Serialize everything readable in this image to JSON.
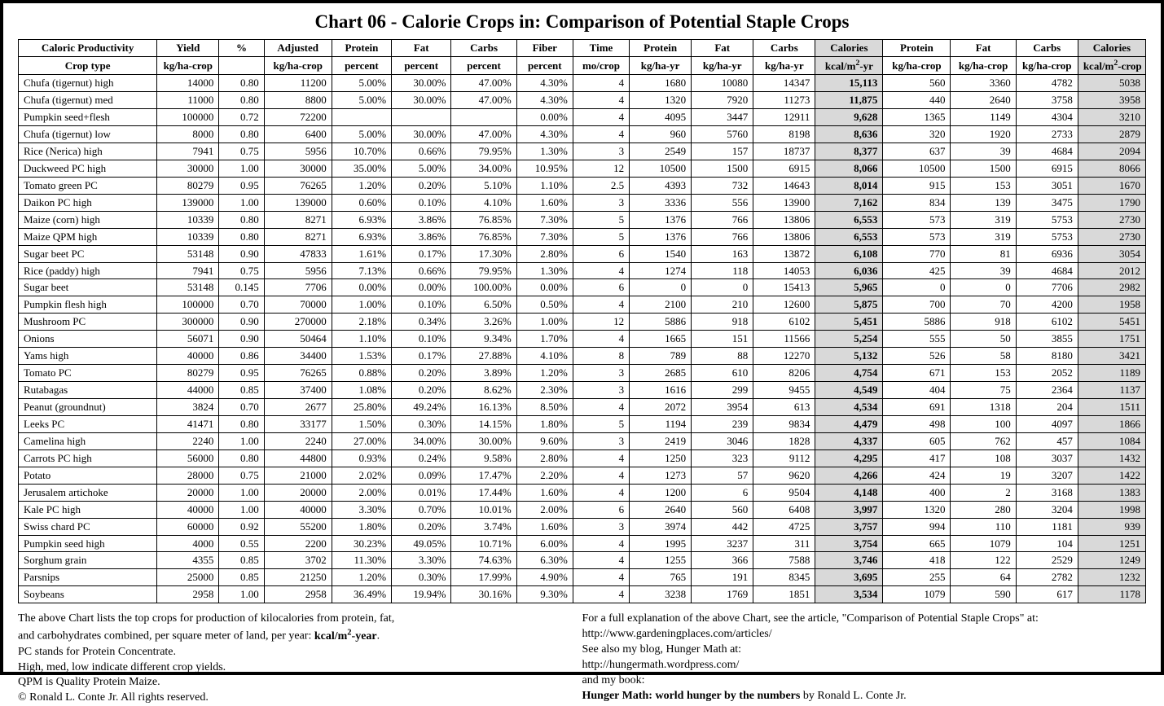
{
  "title": "Chart 06 - Calorie Crops in: Comparison of Potential Staple Crops",
  "table": {
    "type": "table",
    "background_color": "#ffffff",
    "border_color": "#000000",
    "highlight_color": "#d9d9d9",
    "font_family": "Times New Roman",
    "header_fontsize": 13,
    "body_fontsize": 13,
    "column_widths_pct": [
      12.3,
      5.5,
      4.0,
      6.0,
      5.3,
      5.3,
      5.8,
      5.0,
      5.0,
      5.5,
      5.5,
      5.5,
      6.0,
      6.0,
      5.8,
      5.5,
      6.0
    ],
    "highlight_cols": [
      12,
      16
    ],
    "header_row1": [
      "Caloric Productivity",
      "Yield",
      "%",
      "Adjusted",
      "Protein",
      "Fat",
      "Carbs",
      "Fiber",
      "Time",
      "Protein",
      "Fat",
      "Carbs",
      "Calories",
      "Protein",
      "Fat",
      "Carbs",
      "Calories"
    ],
    "header_row2": [
      "Crop type",
      "kg/ha-crop",
      "",
      "kg/ha-crop",
      "percent",
      "percent",
      "percent",
      "percent",
      "mo/crop",
      "kg/ha-yr",
      "kg/ha-yr",
      "kg/ha-yr",
      "kcal/m²-yr",
      "kg/ha-crop",
      "kg/ha-crop",
      "kg/ha-crop",
      "kcal/m²-crop"
    ],
    "rows": [
      [
        "Chufa (tigernut) high",
        "14000",
        "0.80",
        "11200",
        "5.00%",
        "30.00%",
        "47.00%",
        "4.30%",
        "4",
        "1680",
        "10080",
        "14347",
        "15,113",
        "560",
        "3360",
        "4782",
        "5038"
      ],
      [
        "Chufa (tigernut) med",
        "11000",
        "0.80",
        "8800",
        "5.00%",
        "30.00%",
        "47.00%",
        "4.30%",
        "4",
        "1320",
        "7920",
        "11273",
        "11,875",
        "440",
        "2640",
        "3758",
        "3958"
      ],
      [
        "Pumpkin seed+flesh",
        "100000",
        "0.72",
        "72200",
        "",
        "",
        "",
        "0.00%",
        "4",
        "4095",
        "3447",
        "12911",
        "9,628",
        "1365",
        "1149",
        "4304",
        "3210"
      ],
      [
        "Chufa (tigernut) low",
        "8000",
        "0.80",
        "6400",
        "5.00%",
        "30.00%",
        "47.00%",
        "4.30%",
        "4",
        "960",
        "5760",
        "8198",
        "8,636",
        "320",
        "1920",
        "2733",
        "2879"
      ],
      [
        "Rice (Nerica) high",
        "7941",
        "0.75",
        "5956",
        "10.70%",
        "0.66%",
        "79.95%",
        "1.30%",
        "3",
        "2549",
        "157",
        "18737",
        "8,377",
        "637",
        "39",
        "4684",
        "2094"
      ],
      [
        "Duckweed PC high",
        "30000",
        "1.00",
        "30000",
        "35.00%",
        "5.00%",
        "34.00%",
        "10.95%",
        "12",
        "10500",
        "1500",
        "6915",
        "8,066",
        "10500",
        "1500",
        "6915",
        "8066"
      ],
      [
        "Tomato green PC",
        "80279",
        "0.95",
        "76265",
        "1.20%",
        "0.20%",
        "5.10%",
        "1.10%",
        "2.5",
        "4393",
        "732",
        "14643",
        "8,014",
        "915",
        "153",
        "3051",
        "1670"
      ],
      [
        "Daikon PC high",
        "139000",
        "1.00",
        "139000",
        "0.60%",
        "0.10%",
        "4.10%",
        "1.60%",
        "3",
        "3336",
        "556",
        "13900",
        "7,162",
        "834",
        "139",
        "3475",
        "1790"
      ],
      [
        "Maize (corn) high",
        "10339",
        "0.80",
        "8271",
        "6.93%",
        "3.86%",
        "76.85%",
        "7.30%",
        "5",
        "1376",
        "766",
        "13806",
        "6,553",
        "573",
        "319",
        "5753",
        "2730"
      ],
      [
        "Maize QPM high",
        "10339",
        "0.80",
        "8271",
        "6.93%",
        "3.86%",
        "76.85%",
        "7.30%",
        "5",
        "1376",
        "766",
        "13806",
        "6,553",
        "573",
        "319",
        "5753",
        "2730"
      ],
      [
        "Sugar beet PC",
        "53148",
        "0.90",
        "47833",
        "1.61%",
        "0.17%",
        "17.30%",
        "2.80%",
        "6",
        "1540",
        "163",
        "13872",
        "6,108",
        "770",
        "81",
        "6936",
        "3054"
      ],
      [
        "Rice (paddy) high",
        "7941",
        "0.75",
        "5956",
        "7.13%",
        "0.66%",
        "79.95%",
        "1.30%",
        "4",
        "1274",
        "118",
        "14053",
        "6,036",
        "425",
        "39",
        "4684",
        "2012"
      ],
      [
        "Sugar beet",
        "53148",
        "0.145",
        "7706",
        "0.00%",
        "0.00%",
        "100.00%",
        "0.00%",
        "6",
        "0",
        "0",
        "15413",
        "5,965",
        "0",
        "0",
        "7706",
        "2982"
      ],
      [
        "Pumpkin flesh high",
        "100000",
        "0.70",
        "70000",
        "1.00%",
        "0.10%",
        "6.50%",
        "0.50%",
        "4",
        "2100",
        "210",
        "12600",
        "5,875",
        "700",
        "70",
        "4200",
        "1958"
      ],
      [
        "Mushroom PC",
        "300000",
        "0.90",
        "270000",
        "2.18%",
        "0.34%",
        "3.26%",
        "1.00%",
        "12",
        "5886",
        "918",
        "6102",
        "5,451",
        "5886",
        "918",
        "6102",
        "5451"
      ],
      [
        "Onions",
        "56071",
        "0.90",
        "50464",
        "1.10%",
        "0.10%",
        "9.34%",
        "1.70%",
        "4",
        "1665",
        "151",
        "11566",
        "5,254",
        "555",
        "50",
        "3855",
        "1751"
      ],
      [
        "Yams high",
        "40000",
        "0.86",
        "34400",
        "1.53%",
        "0.17%",
        "27.88%",
        "4.10%",
        "8",
        "789",
        "88",
        "12270",
        "5,132",
        "526",
        "58",
        "8180",
        "3421"
      ],
      [
        "Tomato PC",
        "80279",
        "0.95",
        "76265",
        "0.88%",
        "0.20%",
        "3.89%",
        "1.20%",
        "3",
        "2685",
        "610",
        "8206",
        "4,754",
        "671",
        "153",
        "2052",
        "1189"
      ],
      [
        "Rutabagas",
        "44000",
        "0.85",
        "37400",
        "1.08%",
        "0.20%",
        "8.62%",
        "2.30%",
        "3",
        "1616",
        "299",
        "9455",
        "4,549",
        "404",
        "75",
        "2364",
        "1137"
      ],
      [
        "Peanut (groundnut)",
        "3824",
        "0.70",
        "2677",
        "25.80%",
        "49.24%",
        "16.13%",
        "8.50%",
        "4",
        "2072",
        "3954",
        "613",
        "4,534",
        "691",
        "1318",
        "204",
        "1511"
      ],
      [
        "Leeks PC",
        "41471",
        "0.80",
        "33177",
        "1.50%",
        "0.30%",
        "14.15%",
        "1.80%",
        "5",
        "1194",
        "239",
        "9834",
        "4,479",
        "498",
        "100",
        "4097",
        "1866"
      ],
      [
        "Camelina high",
        "2240",
        "1.00",
        "2240",
        "27.00%",
        "34.00%",
        "30.00%",
        "9.60%",
        "3",
        "2419",
        "3046",
        "1828",
        "4,337",
        "605",
        "762",
        "457",
        "1084"
      ],
      [
        "Carrots PC high",
        "56000",
        "0.80",
        "44800",
        "0.93%",
        "0.24%",
        "9.58%",
        "2.80%",
        "4",
        "1250",
        "323",
        "9112",
        "4,295",
        "417",
        "108",
        "3037",
        "1432"
      ],
      [
        "Potato",
        "28000",
        "0.75",
        "21000",
        "2.02%",
        "0.09%",
        "17.47%",
        "2.20%",
        "4",
        "1273",
        "57",
        "9620",
        "4,266",
        "424",
        "19",
        "3207",
        "1422"
      ],
      [
        "Jerusalem artichoke",
        "20000",
        "1.00",
        "20000",
        "2.00%",
        "0.01%",
        "17.44%",
        "1.60%",
        "4",
        "1200",
        "6",
        "9504",
        "4,148",
        "400",
        "2",
        "3168",
        "1383"
      ],
      [
        "Kale PC high",
        "40000",
        "1.00",
        "40000",
        "3.30%",
        "0.70%",
        "10.01%",
        "2.00%",
        "6",
        "2640",
        "560",
        "6408",
        "3,997",
        "1320",
        "280",
        "3204",
        "1998"
      ],
      [
        "Swiss chard PC",
        "60000",
        "0.92",
        "55200",
        "1.80%",
        "0.20%",
        "3.74%",
        "1.60%",
        "3",
        "3974",
        "442",
        "4725",
        "3,757",
        "994",
        "110",
        "1181",
        "939"
      ],
      [
        "Pumpkin seed high",
        "4000",
        "0.55",
        "2200",
        "30.23%",
        "49.05%",
        "10.71%",
        "6.00%",
        "4",
        "1995",
        "3237",
        "311",
        "3,754",
        "665",
        "1079",
        "104",
        "1251"
      ],
      [
        "Sorghum grain",
        "4355",
        "0.85",
        "3702",
        "11.30%",
        "3.30%",
        "74.63%",
        "6.30%",
        "4",
        "1255",
        "366",
        "7588",
        "3,746",
        "418",
        "122",
        "2529",
        "1249"
      ],
      [
        "Parsnips",
        "25000",
        "0.85",
        "21250",
        "1.20%",
        "0.30%",
        "17.99%",
        "4.90%",
        "4",
        "765",
        "191",
        "8345",
        "3,695",
        "255",
        "64",
        "2782",
        "1232"
      ],
      [
        "Soybeans",
        "2958",
        "1.00",
        "2958",
        "36.49%",
        "19.94%",
        "30.16%",
        "9.30%",
        "4",
        "3238",
        "1769",
        "1851",
        "3,534",
        "1079",
        "590",
        "617",
        "1178"
      ]
    ]
  },
  "footer": {
    "left": {
      "l1a": "The above Chart lists the top crops for production of kilocalories from protein, fat,",
      "l2a": "and carbohydrates combined, per square meter of land, per year: ",
      "l2b": "kcal/m",
      "l2c": "-year",
      "l3": "PC stands for Protein Concentrate.",
      "l4": "High, med, low indicate different crop yields.",
      "l5": "QPM is Quality Protein Maize.",
      "l6": "© Ronald L. Conte Jr. All rights reserved."
    },
    "right": {
      "r1": "For a full explanation of the above Chart, see the article, \"Comparison of Potential Staple Crops\" at:",
      "r2": "http://www.gardeningplaces.com/articles/",
      "r3": "See also my blog, Hunger Math at:",
      "r4": "http://hungermath.wordpress.com/",
      "r5": "and my book:",
      "r6a": "Hunger Math: world hunger by the numbers",
      "r6b": " by Ronald L. Conte Jr."
    }
  }
}
